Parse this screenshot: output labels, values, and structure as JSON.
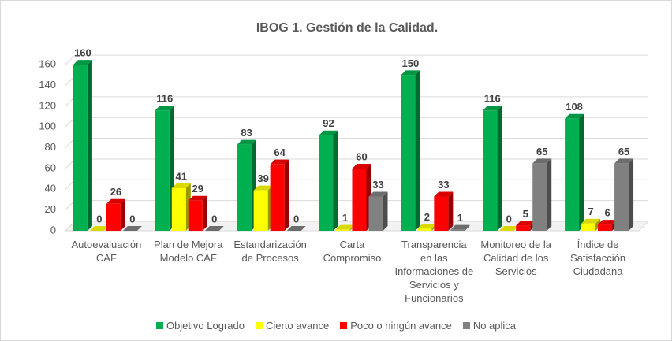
{
  "chart_data": {
    "type": "bar3d",
    "title": "IBOG 1. Gestión de la Calidad.",
    "categories": [
      "Autoevaluación CAF",
      "Plan de Mejora Modelo CAF",
      "Estandarización de Procesos",
      "Carta Compromiso",
      "Transparencia en las Informaciones de Servicios y Funcionarios",
      "Monitoreo de la Calidad de los Servicios",
      "Índice de Satisfacción Ciudadana"
    ],
    "series": [
      {
        "name": "Objetivo Logrado",
        "color": "#00b050",
        "values": [
          160,
          116,
          83,
          92,
          150,
          116,
          108
        ]
      },
      {
        "name": "Cierto avance",
        "color": "#ffff00",
        "values": [
          0,
          41,
          39,
          1,
          2,
          0,
          7
        ]
      },
      {
        "name": "Poco o ningún avance",
        "color": "#ff0000",
        "values": [
          26,
          29,
          64,
          60,
          33,
          5,
          6
        ]
      },
      {
        "name": "No aplica",
        "color": "#808080",
        "values": [
          0,
          0,
          0,
          33,
          1,
          65,
          65
        ]
      }
    ],
    "ylim": [
      0,
      170
    ],
    "yticks": [
      0,
      20,
      40,
      60,
      80,
      100,
      120,
      140,
      160
    ],
    "grid": true,
    "legend": "bottom"
  }
}
